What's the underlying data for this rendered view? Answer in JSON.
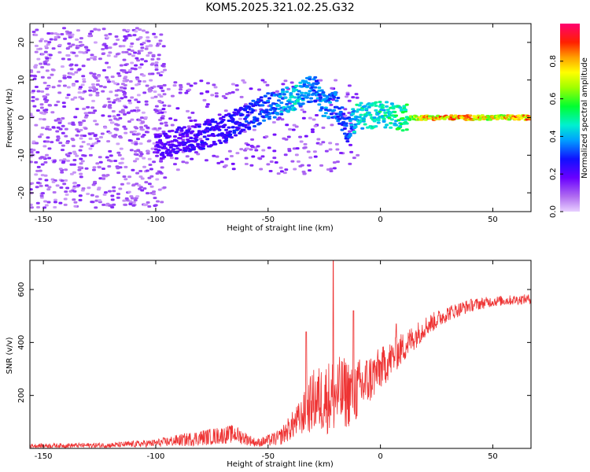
{
  "title": "KOM5.2025.321.02.25.G32",
  "chart_data": [
    {
      "type": "heatmap",
      "title": "KOM5.2025.321.02.25.G32",
      "xlabel": "Height of straight line (km)",
      "ylabel": "Frequency (Hz)",
      "xlim": [
        -156,
        67
      ],
      "ylim": [
        -25,
        25
      ],
      "xticks": [
        -150,
        -100,
        -50,
        0,
        50
      ],
      "yticks": [
        -20,
        -10,
        0,
        10,
        20
      ],
      "colorbar": {
        "label": "Normalized spectral amplitude",
        "range": [
          0,
          1
        ],
        "ticks": [
          "0.0",
          "0.2",
          "0.4",
          "0.6",
          "0.8"
        ]
      },
      "ridge": [
        {
          "x": -100,
          "y": -8,
          "amp": 0.2
        },
        {
          "x": -90,
          "y": -6,
          "amp": 0.22
        },
        {
          "x": -80,
          "y": -5,
          "amp": 0.25
        },
        {
          "x": -70,
          "y": -3,
          "amp": 0.25
        },
        {
          "x": -60,
          "y": 0,
          "amp": 0.3
        },
        {
          "x": -50,
          "y": 3,
          "amp": 0.35
        },
        {
          "x": -45,
          "y": 4,
          "amp": 0.4
        },
        {
          "x": -38,
          "y": 5.5,
          "amp": 0.45
        },
        {
          "x": -30,
          "y": 8,
          "amp": 0.35
        },
        {
          "x": -25,
          "y": 3,
          "amp": 0.4
        },
        {
          "x": -20,
          "y": 3.5,
          "amp": 0.35
        },
        {
          "x": -15,
          "y": -3,
          "amp": 0.3
        },
        {
          "x": -10,
          "y": 0.5,
          "amp": 0.5
        },
        {
          "x": -5,
          "y": 0.5,
          "amp": 0.45
        },
        {
          "x": 0,
          "y": 1,
          "amp": 0.5
        },
        {
          "x": 5,
          "y": 0.5,
          "amp": 0.5
        },
        {
          "x": 10,
          "y": 0,
          "amp": 0.55
        },
        {
          "x": 20,
          "y": 0,
          "amp": 0.8
        },
        {
          "x": 30,
          "y": 0,
          "amp": 0.85
        },
        {
          "x": 40,
          "y": 0,
          "amp": 0.85
        },
        {
          "x": 50,
          "y": 0,
          "amp": 0.75
        },
        {
          "x": 60,
          "y": 0,
          "amp": 0.85
        },
        {
          "x": 67,
          "y": 0,
          "amp": 0.85
        }
      ]
    },
    {
      "type": "line",
      "xlabel": "Height of straight line (km)",
      "ylabel": "SNR (v/v)",
      "xlim": [
        -156,
        67
      ],
      "ylim": [
        0,
        710
      ],
      "xticks": [
        -150,
        -100,
        -50,
        0,
        50
      ],
      "yticks": [
        200,
        400,
        600
      ],
      "color": "#ee3333",
      "envelope": [
        {
          "x": -156,
          "mean": 10,
          "spread": 8
        },
        {
          "x": -120,
          "mean": 12,
          "spread": 10
        },
        {
          "x": -100,
          "mean": 20,
          "spread": 15
        },
        {
          "x": -80,
          "mean": 40,
          "spread": 30
        },
        {
          "x": -65,
          "mean": 55,
          "spread": 35
        },
        {
          "x": -55,
          "mean": 20,
          "spread": 15
        },
        {
          "x": -45,
          "mean": 40,
          "spread": 30
        },
        {
          "x": -35,
          "mean": 120,
          "spread": 70
        },
        {
          "x": -30,
          "mean": 180,
          "spread": 120
        },
        {
          "x": -20,
          "mean": 200,
          "spread": 150
        },
        {
          "x": -10,
          "mean": 220,
          "spread": 120
        },
        {
          "x": 0,
          "mean": 300,
          "spread": 80
        },
        {
          "x": 10,
          "mean": 380,
          "spread": 60
        },
        {
          "x": 20,
          "mean": 460,
          "spread": 40
        },
        {
          "x": 30,
          "mean": 510,
          "spread": 30
        },
        {
          "x": 40,
          "mean": 540,
          "spread": 25
        },
        {
          "x": 50,
          "mean": 555,
          "spread": 20
        },
        {
          "x": 67,
          "mean": 565,
          "spread": 18
        }
      ],
      "spikes": [
        {
          "x": -21,
          "y": 710
        },
        {
          "x": -33,
          "y": 440
        },
        {
          "x": -12,
          "y": 520
        },
        {
          "x": 7,
          "y": 470
        }
      ]
    }
  ]
}
